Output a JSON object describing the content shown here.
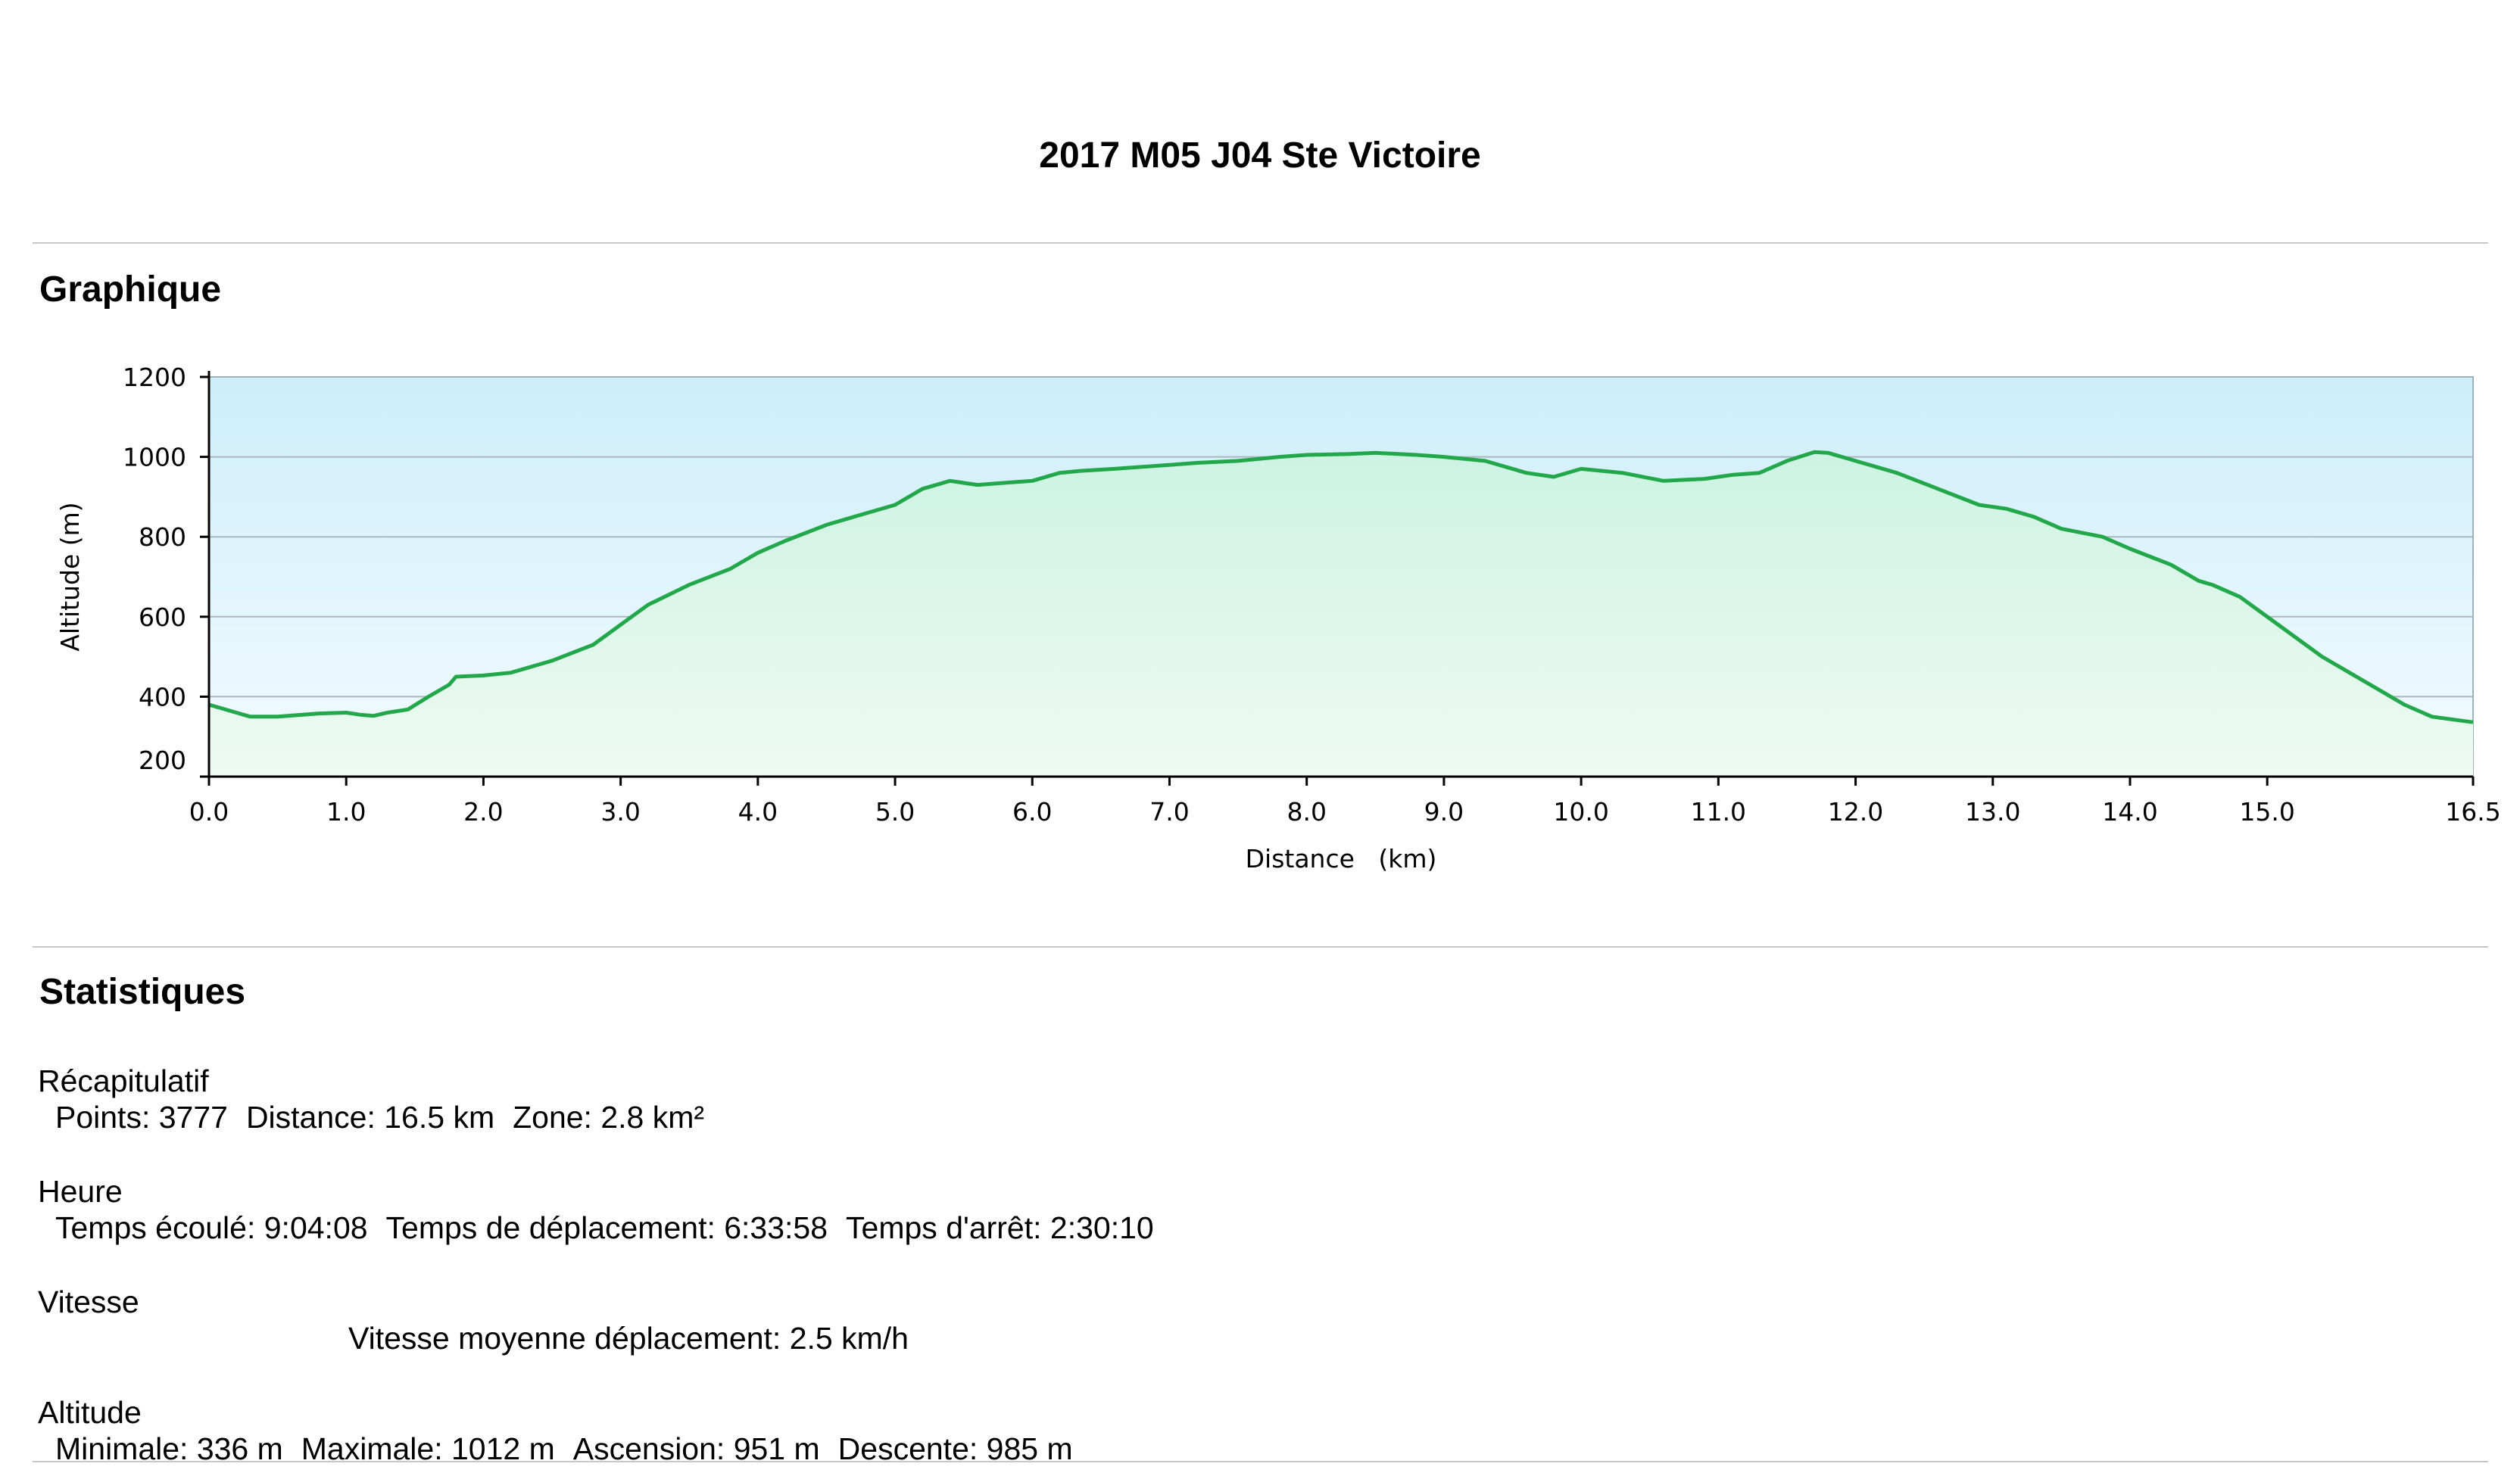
{
  "header": {
    "title": "2017 M05 J04 Ste Victoire"
  },
  "sections": {
    "graph": "Graphique",
    "stats": "Statistiques"
  },
  "colors": {
    "line": "#22a84a",
    "fill_top": "#cdeefa",
    "fill_bottom": "#e8f8ee",
    "grid": "#aeb6bd",
    "rule": "#c8c8c8"
  },
  "chart_data": {
    "type": "area",
    "xlabel": "Distance   (km)",
    "ylabel": "Altitude (m)",
    "xlim": [
      0,
      16.5
    ],
    "ylim": [
      200,
      1200
    ],
    "x_ticks": [
      "0.0",
      "1.0",
      "2.0",
      "3.0",
      "4.0",
      "5.0",
      "6.0",
      "7.0",
      "8.0",
      "9.0",
      "10.0",
      "11.0",
      "12.0",
      "13.0",
      "14.0",
      "15.0",
      "16.5"
    ],
    "y_ticks": [
      "200",
      "400",
      "600",
      "800",
      "1000",
      "1200"
    ],
    "grid": "horizontal",
    "series": [
      {
        "x": [
          0.0,
          0.05,
          0.2,
          0.3,
          0.5,
          0.8,
          1.0,
          1.1,
          1.2,
          1.3,
          1.45,
          1.6,
          1.75,
          1.8,
          2.0,
          2.2,
          2.5,
          2.8,
          3.0,
          3.2,
          3.5,
          3.8,
          4.0,
          4.2,
          4.5,
          4.8,
          5.0,
          5.2,
          5.4,
          5.6,
          5.8,
          6.0,
          6.2,
          6.35,
          6.6,
          6.8,
          7.0,
          7.2,
          7.5,
          7.8,
          8.0,
          8.3,
          8.5,
          8.8,
          9.0,
          9.3,
          9.6,
          9.8,
          10.0,
          10.3,
          10.6,
          10.9,
          11.1,
          11.3,
          11.5,
          11.7,
          11.8,
          12.0,
          12.3,
          12.6,
          12.9,
          13.1,
          13.3,
          13.5,
          13.8,
          14.0,
          14.3,
          14.5,
          14.6,
          14.8,
          15.0,
          15.2,
          15.4,
          15.6,
          15.8,
          16.0,
          16.2,
          16.5
        ],
        "y": [
          380,
          375,
          360,
          350,
          350,
          358,
          360,
          355,
          352,
          360,
          368,
          400,
          430,
          450,
          453,
          460,
          490,
          530,
          580,
          630,
          680,
          720,
          760,
          790,
          830,
          860,
          880,
          920,
          940,
          930,
          935,
          940,
          960,
          965,
          970,
          975,
          980,
          985,
          990,
          1000,
          1005,
          1007,
          1010,
          1005,
          1000,
          990,
          960,
          950,
          970,
          960,
          940,
          945,
          955,
          960,
          990,
          1012,
          1010,
          990,
          960,
          920,
          880,
          870,
          850,
          820,
          800,
          770,
          730,
          690,
          680,
          650,
          600,
          550,
          500,
          460,
          420,
          380,
          350,
          336
        ]
      }
    ]
  },
  "stats": {
    "recap": {
      "label": "Récapitulatif",
      "points": "Points: 3777",
      "distance": "Distance: 16.5 km",
      "zone": "Zone: 2.8 km²"
    },
    "heure": {
      "label": "Heure",
      "elapsed": "Temps écoulé: 9:04:08",
      "moving": "Temps de déplacement: 6:33:58",
      "stopped": "Temps d'arrêt: 2:30:10"
    },
    "vitesse": {
      "label": "Vitesse",
      "avg_moving": "Vitesse moyenne déplacement: 2.5 km/h"
    },
    "altitude": {
      "label": "Altitude",
      "min": "Minimale: 336 m",
      "max": "Maximale: 1012 m",
      "ascent": "Ascension: 951 m",
      "descent": "Descente: 985 m"
    }
  }
}
